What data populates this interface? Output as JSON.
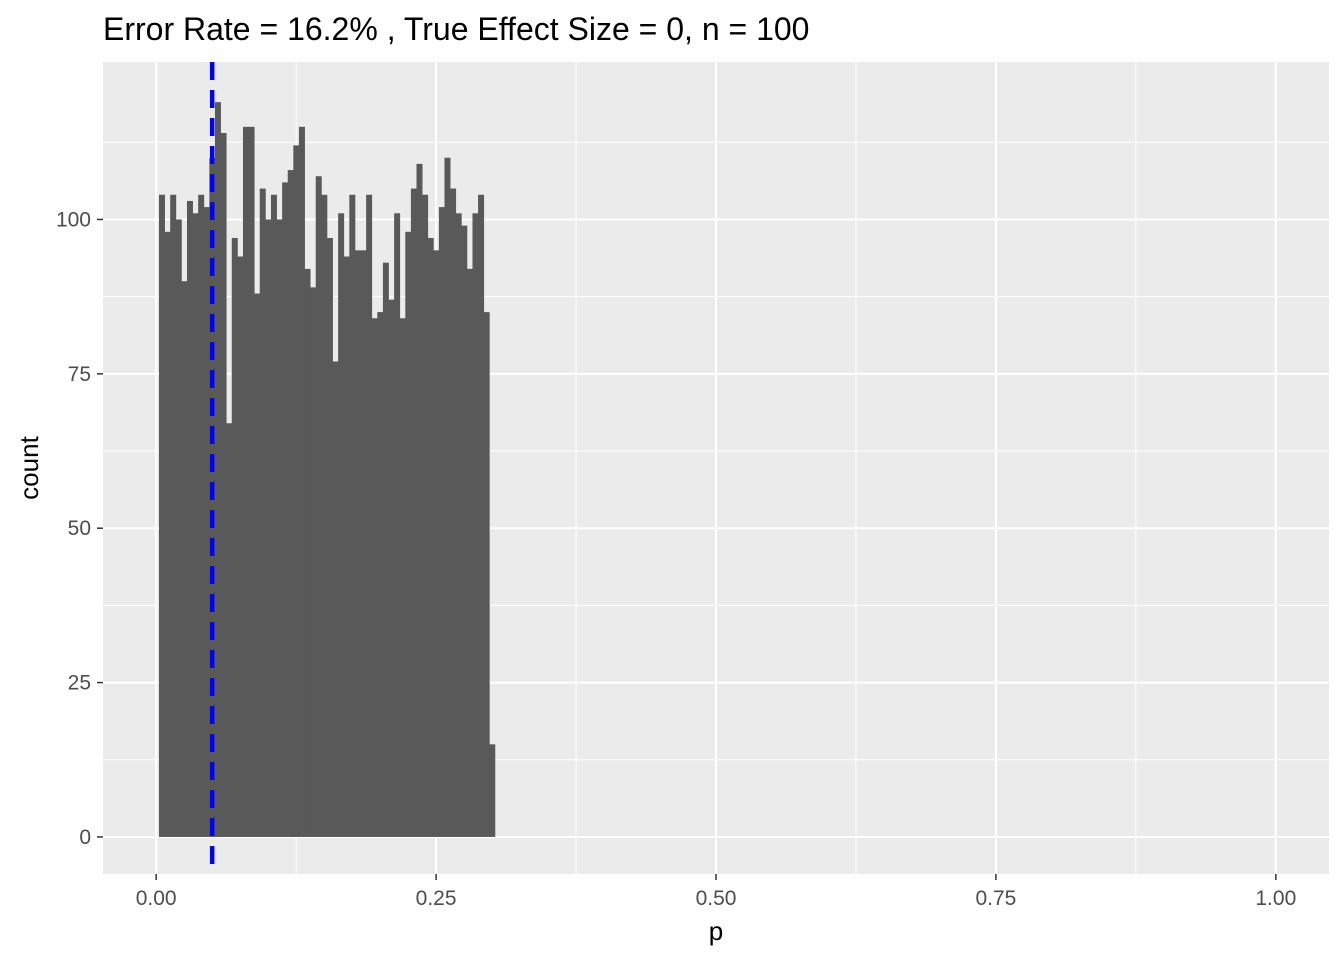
{
  "chart_data": {
    "type": "bar",
    "title": "Error Rate = 16.2% , True Effect Size = 0, n = 100",
    "xlabel": "p",
    "ylabel": "count",
    "xlim": [
      -0.0475,
      1.0475
    ],
    "ylim": [
      -6,
      125.5
    ],
    "x_ticks": [
      0,
      0.25,
      0.5,
      0.75,
      1.0
    ],
    "x_tick_labels": [
      "0.00",
      "0.25",
      "0.50",
      "0.75",
      "1.00"
    ],
    "y_ticks": [
      0,
      25,
      50,
      75,
      100
    ],
    "y_tick_labels": [
      "0",
      "25",
      "50",
      "75",
      "100"
    ],
    "bin_width": 0.005,
    "bin_start": 0.0025,
    "counts": [
      104,
      98,
      104,
      100,
      90,
      103,
      101,
      104,
      102,
      110,
      119,
      114,
      67,
      97,
      94,
      115,
      115,
      88,
      105,
      100,
      104,
      100,
      106,
      108,
      112,
      115,
      92,
      89,
      107,
      104,
      97,
      77,
      101,
      94,
      104,
      95,
      95,
      104,
      84,
      85,
      93,
      87,
      101,
      84,
      98,
      105,
      109,
      104,
      97,
      95,
      102,
      110,
      105,
      101,
      99,
      92,
      101,
      104,
      85,
      15
    ],
    "reference_line": {
      "x": 0.05,
      "style": "dashed",
      "color": "#0000ff"
    },
    "colors": {
      "panel": "#ebebeb",
      "grid": "#ffffff",
      "bar": "#595959",
      "vline": "#0000ff"
    },
    "grid": true,
    "legend": "none"
  }
}
